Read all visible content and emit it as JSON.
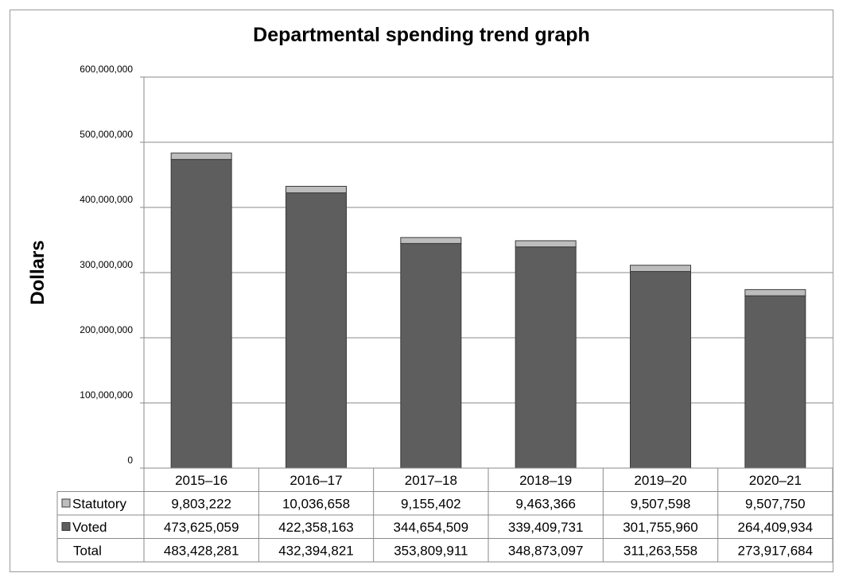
{
  "chart_data": {
    "type": "bar",
    "stacked": true,
    "title": "Departmental spending trend graph",
    "xlabel": "",
    "ylabel": "Dollars",
    "ylim": [
      0,
      600000000
    ],
    "yticks": [
      "0",
      "100,000,000",
      "200,000,000",
      "300,000,000",
      "400,000,000",
      "500,000,000",
      "600,000,000"
    ],
    "ytick_values": [
      0,
      100000000,
      200000000,
      300000000,
      400000000,
      500000000,
      600000000
    ],
    "grid": true,
    "legend": "data-table-left",
    "categories": [
      "2015–16",
      "2016–17",
      "2017–18",
      "2018–19",
      "2019–20",
      "2020–21"
    ],
    "series": [
      {
        "name": "Voted",
        "color": "#5e5e5e",
        "values": [
          473625059,
          422358163,
          344654509,
          339409731,
          301755960,
          264409934
        ],
        "labels": [
          "473,625,059",
          "422,358,163",
          "344,654,509",
          "339,409,731",
          "301,755,960",
          "264,409,934"
        ]
      },
      {
        "name": "Statutory",
        "color": "#bdbdbd",
        "values": [
          9803222,
          10036658,
          9155402,
          9463366,
          9507598,
          9507750
        ],
        "labels": [
          "9,803,222",
          "10,036,658",
          "9,155,402",
          "9,463,366",
          "9,507,598",
          "9,507,750"
        ]
      }
    ],
    "totals": {
      "name": "Total",
      "values": [
        483428281,
        432394821,
        353809911,
        348873097,
        311263558,
        273917684
      ],
      "labels": [
        "483,428,281",
        "432,394,821",
        "353,809,911",
        "348,873,097",
        "311,263,558",
        "273,917,684"
      ]
    }
  }
}
